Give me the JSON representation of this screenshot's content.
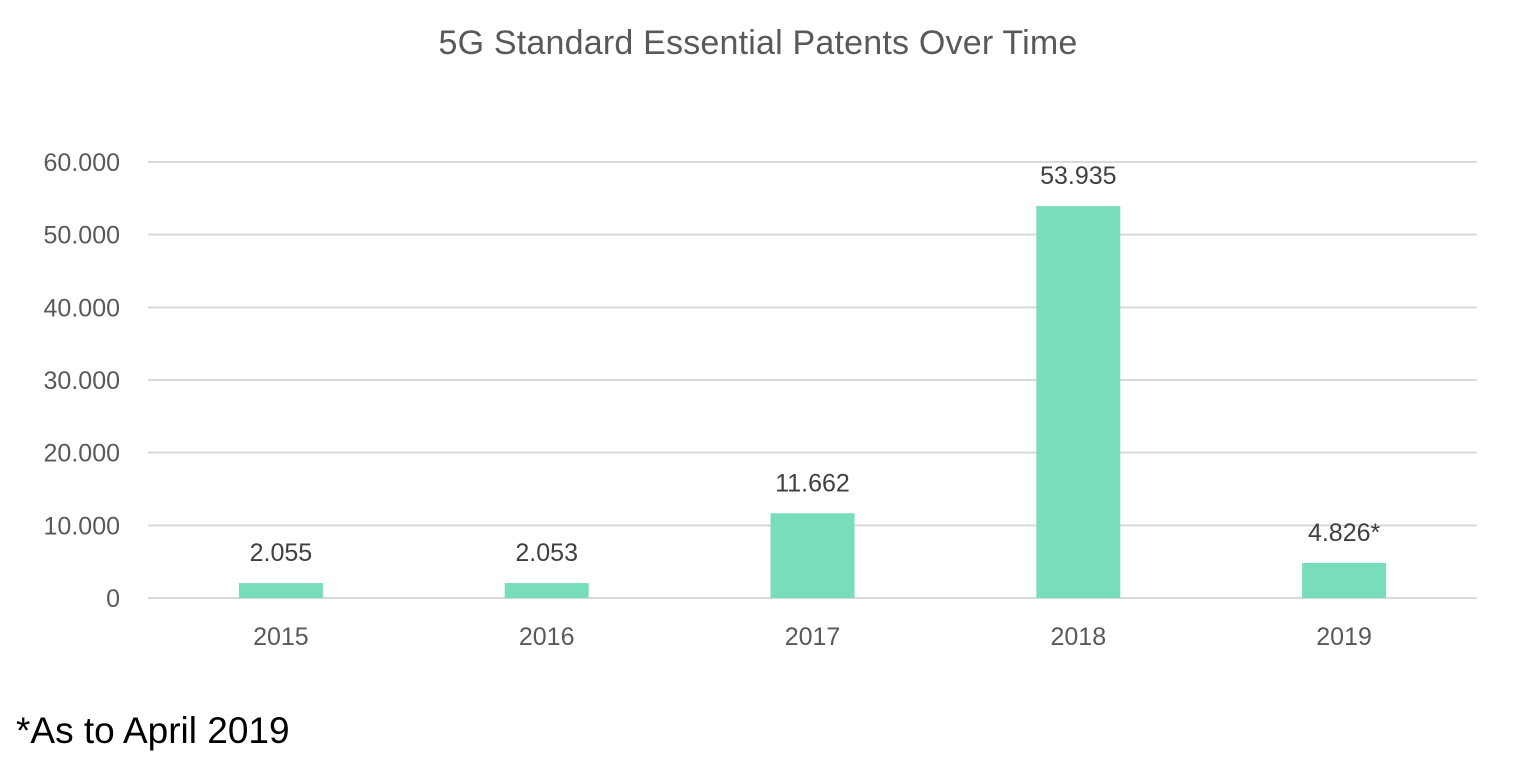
{
  "chart_data": {
    "type": "bar",
    "title": "5G Standard Essential Patents Over Time",
    "categories": [
      "2015",
      "2016",
      "2017",
      "2018",
      "2019"
    ],
    "values": [
      2055,
      2053,
      11662,
      53935,
      4826
    ],
    "data_labels": [
      "2.055",
      "2.053",
      "11.662",
      "53.935",
      "4.826*"
    ],
    "y_ticks": [
      0,
      10000,
      20000,
      30000,
      40000,
      50000,
      60000
    ],
    "y_tick_labels": [
      "0",
      "10.000",
      "20.000",
      "30.000",
      "40.000",
      "50.000",
      "60.000"
    ],
    "ylim": [
      0,
      60000
    ],
    "xlabel": "",
    "ylabel": "",
    "grid": true,
    "legend": "none",
    "bar_color": "#77DDBA",
    "gridline_color": "#D9D9D9"
  },
  "footnote": "*As to April 2019"
}
